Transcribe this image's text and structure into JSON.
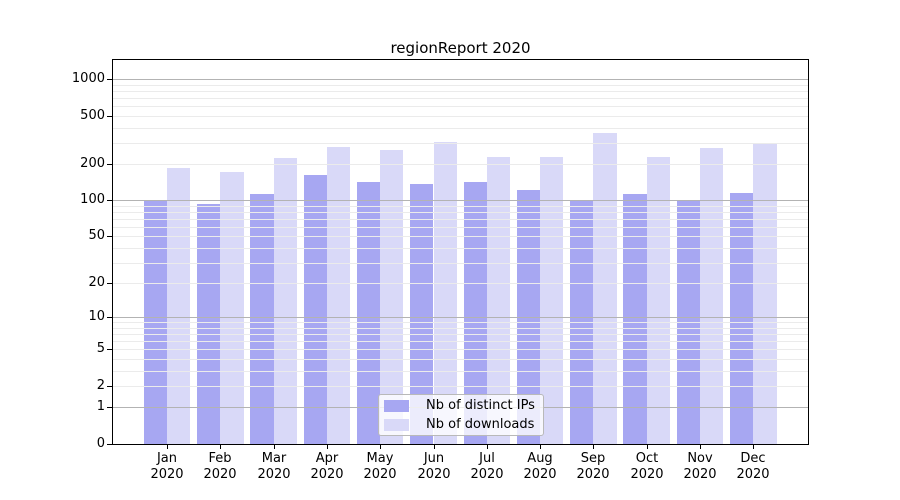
{
  "chart_data": {
    "type": "bar",
    "title": "regionReport 2020",
    "categories": [
      "Jan",
      "Feb",
      "Mar",
      "Apr",
      "May",
      "Jun",
      "Jul",
      "Aug",
      "Sep",
      "Oct",
      "Nov",
      "Dec"
    ],
    "x_axis": {
      "year": "2020"
    },
    "y_axis": {
      "scale": "mirror-log (position proportional to log10(1+value))",
      "ticks": [
        1000,
        500,
        200,
        100,
        50,
        20,
        10,
        5,
        2,
        1,
        0
      ],
      "minor_gridlines": "2-9 of each decade",
      "top_of_axis_value": 1440
    },
    "series": [
      {
        "name": "Nb of distinct IPs",
        "color": "#a7a7f2",
        "values": [
          100,
          94,
          114,
          162,
          143,
          138,
          142,
          121,
          100,
          114,
          99,
          116
        ]
      },
      {
        "name": "Nb of downloads",
        "color": "#d9d9f8",
        "values": [
          186,
          173,
          223,
          278,
          261,
          304,
          227,
          229,
          359,
          227,
          270,
          297
        ]
      }
    ],
    "legend": {
      "position": "inside-bottom-center"
    },
    "grid": true,
    "colors": {
      "grid_minor": "#ebebeb",
      "grid_decade": "#b3b3b3",
      "frame": "#000000",
      "background": "#ffffff"
    }
  }
}
